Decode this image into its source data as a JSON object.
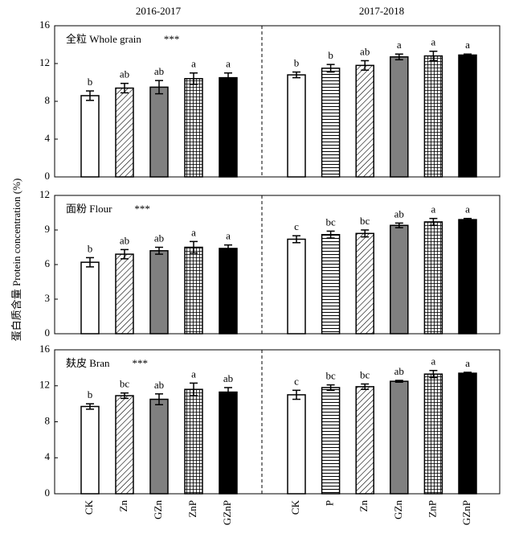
{
  "ylabel": "蛋白质含量 Protein concentration (%)",
  "periods": [
    {
      "name": "2016-2017",
      "categories": [
        "CK",
        "Zn",
        "GZn",
        "ZnP",
        "GZnP"
      ],
      "fills": [
        "white",
        "diag",
        "gray",
        "grid",
        "black"
      ]
    },
    {
      "name": "2017-2018",
      "categories": [
        "CK",
        "P",
        "Zn",
        "GZn",
        "ZnP",
        "GZnP"
      ],
      "fills": [
        "white",
        "hlines",
        "diag",
        "gray",
        "grid",
        "black"
      ]
    }
  ],
  "chart_data": [
    {
      "type": "bar",
      "title": "全粒 Whole grain",
      "annotation": "***",
      "ylim": [
        0,
        16
      ],
      "yticks": [
        0,
        4,
        8,
        12,
        16
      ],
      "groups": [
        {
          "values": [
            8.6,
            9.4,
            9.5,
            10.4,
            10.5
          ],
          "errors": [
            0.5,
            0.5,
            0.7,
            0.6,
            0.5
          ],
          "letters": [
            "b",
            "ab",
            "ab",
            "a",
            "a"
          ]
        },
        {
          "values": [
            10.8,
            11.5,
            11.8,
            12.7,
            12.8,
            12.9
          ],
          "errors": [
            0.3,
            0.4,
            0.5,
            0.3,
            0.5,
            0.1
          ],
          "letters": [
            "b",
            "b",
            "ab",
            "a",
            "a",
            "a"
          ]
        }
      ]
    },
    {
      "type": "bar",
      "title": "面粉 Flour",
      "annotation": "***",
      "ylim": [
        0,
        12
      ],
      "yticks": [
        0,
        3,
        6,
        9,
        12
      ],
      "groups": [
        {
          "values": [
            6.2,
            6.9,
            7.2,
            7.5,
            7.4
          ],
          "errors": [
            0.4,
            0.4,
            0.3,
            0.5,
            0.3
          ],
          "letters": [
            "b",
            "ab",
            "ab",
            "a",
            "a"
          ]
        },
        {
          "values": [
            8.2,
            8.6,
            8.7,
            9.4,
            9.7,
            9.9
          ],
          "errors": [
            0.3,
            0.3,
            0.3,
            0.2,
            0.3,
            0.1
          ],
          "letters": [
            "c",
            "bc",
            "bc",
            "ab",
            "a",
            "a"
          ]
        }
      ]
    },
    {
      "type": "bar",
      "title": "麸皮 Bran",
      "annotation": "***",
      "ylim": [
        0,
        16
      ],
      "yticks": [
        0,
        4,
        8,
        12,
        16
      ],
      "groups": [
        {
          "values": [
            9.7,
            10.9,
            10.5,
            11.6,
            11.3
          ],
          "errors": [
            0.3,
            0.3,
            0.6,
            0.7,
            0.5
          ],
          "letters": [
            "b",
            "bc",
            "ab",
            "a",
            "ab"
          ]
        },
        {
          "values": [
            11.0,
            11.8,
            11.9,
            12.5,
            13.3,
            13.4
          ],
          "errors": [
            0.5,
            0.3,
            0.3,
            0.1,
            0.4,
            0.1
          ],
          "letters": [
            "c",
            "bc",
            "bc",
            "ab",
            "a",
            "a"
          ]
        }
      ]
    }
  ]
}
